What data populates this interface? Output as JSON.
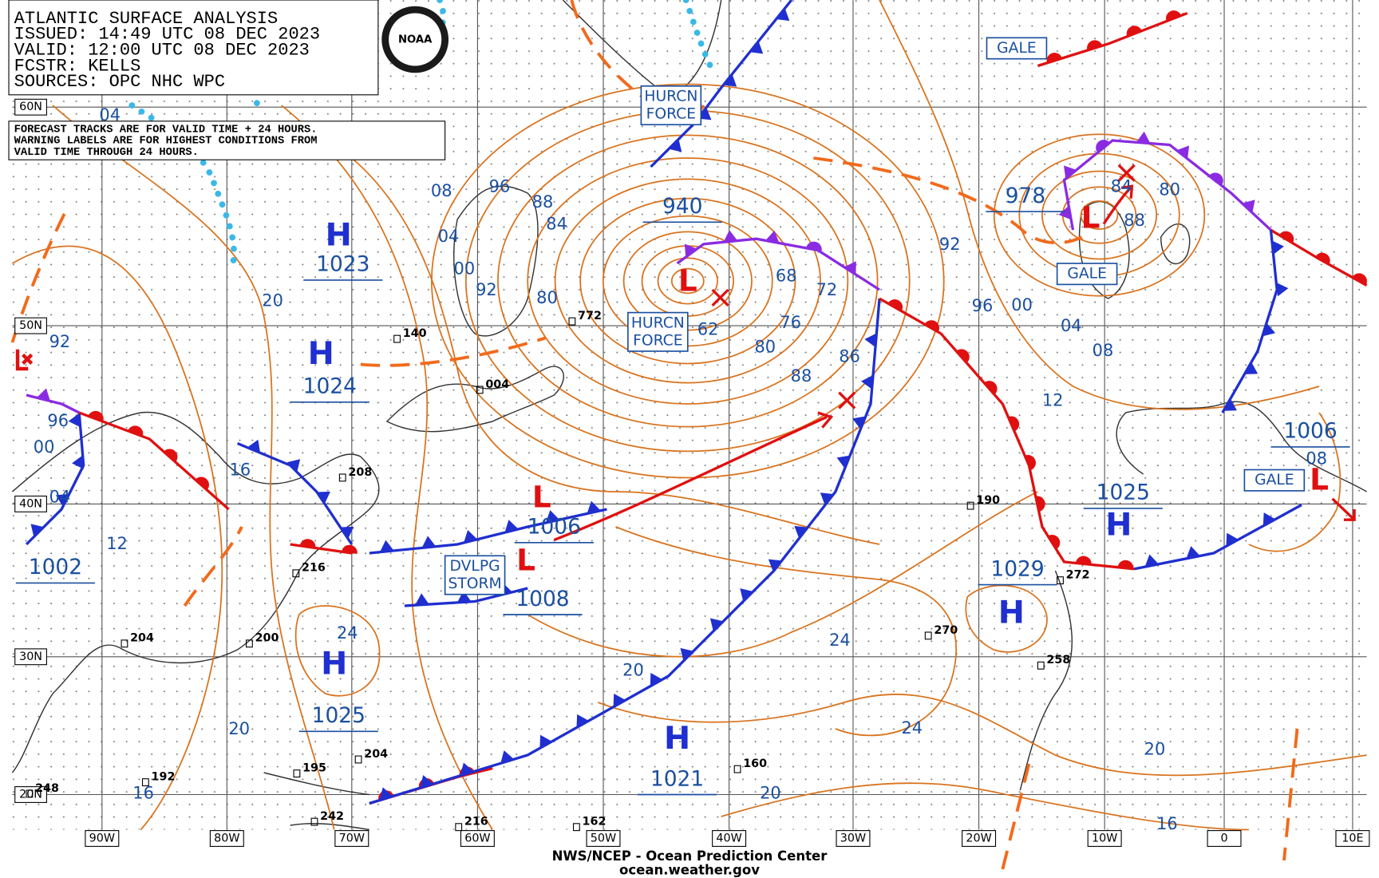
{
  "header": {
    "lines": [
      "ATLANTIC SURFACE ANALYSIS",
      "ISSUED: 14:49 UTC 08 DEC 2023",
      "VALID:  12:00 UTC 08 DEC 2023",
      "FCSTR:  KELLS",
      "SOURCES: OPC NHC WPC"
    ]
  },
  "note": {
    "lines": [
      "FORECAST TRACKS ARE FOR VALID TIME + 24 HOURS.",
      "WARNING LABELS ARE FOR HIGHEST CONDITIONS FROM",
      "VALID TIME THROUGH 24 HOURS."
    ]
  },
  "logo": "NOAA",
  "lat_labels": [
    "60N",
    "50N",
    "40N",
    "30N",
    "20N"
  ],
  "lon_labels": [
    "90W",
    "80W",
    "70W",
    "60W",
    "50W",
    "40W",
    "30W",
    "20W",
    "10W",
    "0",
    "10E"
  ],
  "pressure_centers": [
    {
      "symbol": "H",
      "value": "1023"
    },
    {
      "symbol": "H",
      "value": "1024"
    },
    {
      "symbol": "H",
      "value": "1025"
    },
    {
      "symbol": "H",
      "value": "1021"
    },
    {
      "symbol": "H",
      "value": "1029"
    },
    {
      "symbol": "H",
      "value": "1025"
    },
    {
      "symbol": "L",
      "value": "940"
    },
    {
      "symbol": "L",
      "value": "978"
    },
    {
      "symbol": "L",
      "value": "1006"
    },
    {
      "symbol": "L",
      "value": "1008"
    },
    {
      "symbol": "L",
      "value": "1006"
    }
  ],
  "warnings": [
    {
      "lines": [
        "GALE"
      ]
    },
    {
      "lines": [
        "HURCN",
        "FORCE"
      ]
    },
    {
      "lines": [
        "HURCN",
        "FORCE"
      ]
    },
    {
      "lines": [
        "DVLPG",
        "STORM"
      ]
    },
    {
      "lines": [
        "GALE"
      ]
    },
    {
      "lines": [
        "GALE"
      ]
    }
  ],
  "isobar_labels": [
    "04",
    "96",
    "08",
    "88",
    "84",
    "04",
    "00",
    "92",
    "80",
    "20",
    "92",
    "96",
    "00",
    "04",
    "12",
    "1002",
    "16",
    "68",
    "72",
    "76",
    "62",
    "80",
    "88",
    "86",
    "92",
    "84",
    "80",
    "88",
    "96",
    "00",
    "04",
    "08",
    "12",
    "08",
    "24",
    "20",
    "20",
    "24",
    "24",
    "20",
    "20",
    "16",
    "16"
  ],
  "station_values": [
    "772",
    "004",
    "140",
    "208",
    "216",
    "200",
    "204",
    "204",
    "160",
    "190",
    "270",
    "258",
    "272",
    "162",
    "216",
    "242",
    "195",
    "192",
    "248"
  ],
  "footer": {
    "lines": [
      "NWS/NCEP - Ocean Prediction Center",
      "ocean.weather.gov"
    ]
  }
}
